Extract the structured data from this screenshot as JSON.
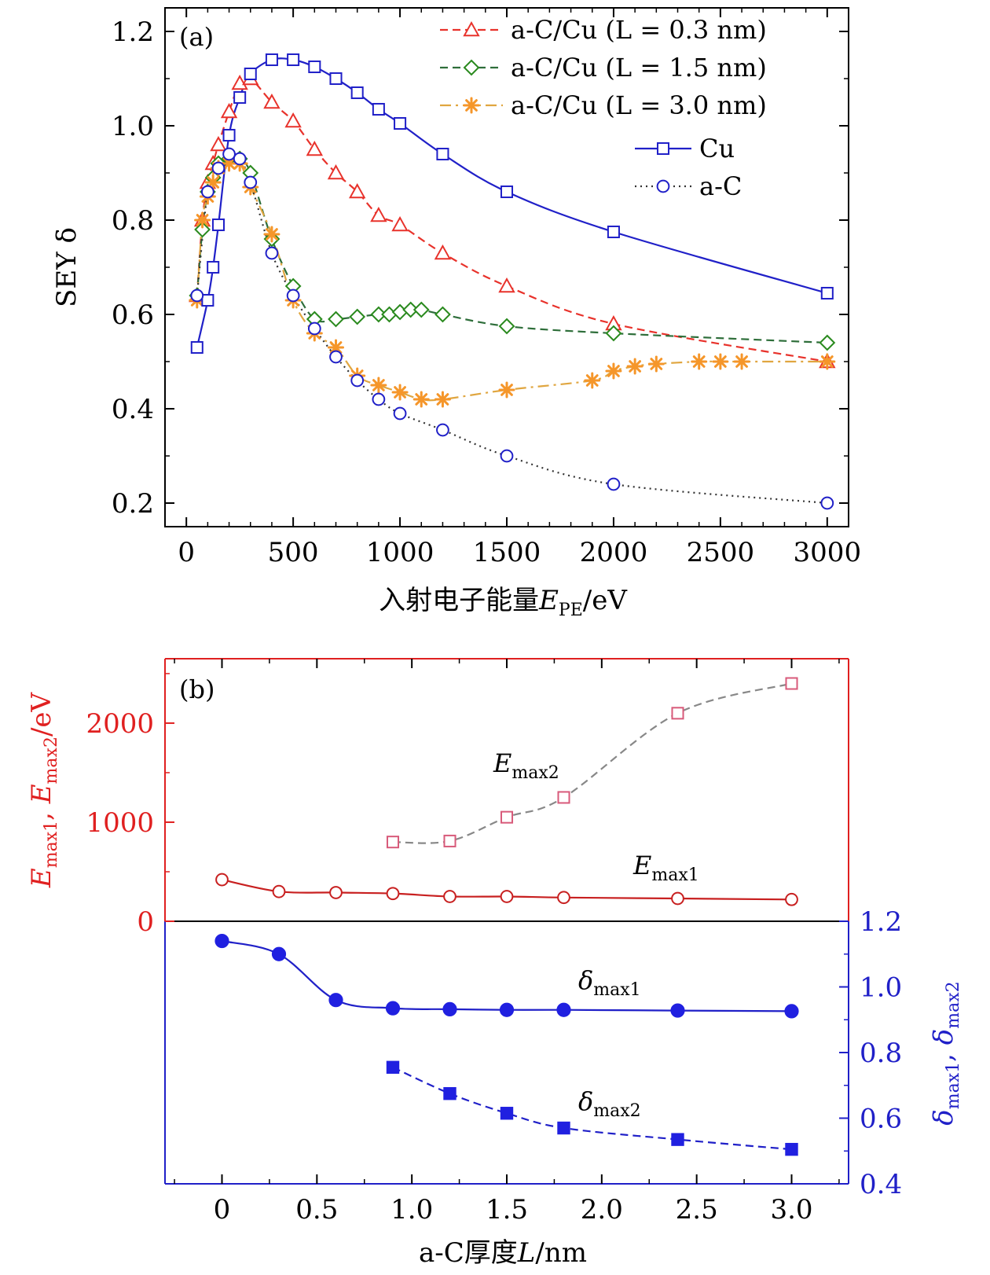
{
  "chart_data": [
    {
      "panel": "(a)",
      "type": "line",
      "xlabel": "入射电子能量",
      "xlabel_symbol": "E",
      "xlabel_sub": "PE",
      "xlabel_unit": "/eV",
      "ylabel": "SEY δ",
      "xlim": [
        -100,
        3100
      ],
      "ylim": [
        0.15,
        1.25
      ],
      "xticks": [
        "0",
        "500",
        "1000",
        "1500",
        "2000",
        "2500",
        "3000"
      ],
      "yticks": [
        "0.2",
        "0.4",
        "0.6",
        "0.8",
        "1.0",
        "1.2"
      ],
      "legend_position": "top-right",
      "series": [
        {
          "name": "a-C/Cu (L = 0.3 nm)",
          "marker": "triangle",
          "style": "dashed",
          "color": "#e8322b",
          "line_color": "#e8322b",
          "x": [
            50,
            75,
            100,
            125,
            150,
            200,
            250,
            300,
            400,
            500,
            600,
            700,
            800,
            900,
            1000,
            1200,
            1500,
            2000,
            3000
          ],
          "y": [
            0.64,
            0.8,
            0.88,
            0.92,
            0.96,
            1.03,
            1.09,
            1.1,
            1.05,
            1.01,
            0.95,
            0.9,
            0.86,
            0.81,
            0.79,
            0.73,
            0.66,
            0.58,
            0.5
          ]
        },
        {
          "name": "a-C/Cu (L = 1.5 nm)",
          "marker": "diamond",
          "style": "dashed",
          "color": "#2a8a1e",
          "line_color": "#2e6e3a",
          "x": [
            50,
            75,
            100,
            125,
            150,
            200,
            250,
            300,
            400,
            500,
            600,
            700,
            800,
            900,
            950,
            1000,
            1050,
            1100,
            1200,
            1500,
            2000,
            3000
          ],
          "y": [
            0.64,
            0.78,
            0.86,
            0.89,
            0.92,
            0.93,
            0.93,
            0.9,
            0.76,
            0.66,
            0.59,
            0.59,
            0.595,
            0.6,
            0.6,
            0.605,
            0.61,
            0.61,
            0.6,
            0.575,
            0.56,
            0.54
          ]
        },
        {
          "name": "a-C/Cu (L =  3.0 nm)",
          "marker": "star",
          "style": "dashdot",
          "color": "#f5962a",
          "line_color": "#e0a640",
          "x": [
            50,
            75,
            100,
            125,
            150,
            200,
            250,
            300,
            400,
            500,
            600,
            700,
            800,
            900,
            1000,
            1100,
            1200,
            1500,
            1900,
            2000,
            2100,
            2200,
            2400,
            2500,
            2600,
            3000
          ],
          "y": [
            0.63,
            0.8,
            0.85,
            0.88,
            0.91,
            0.92,
            0.92,
            0.87,
            0.77,
            0.63,
            0.56,
            0.53,
            0.47,
            0.45,
            0.435,
            0.42,
            0.42,
            0.44,
            0.46,
            0.48,
            0.49,
            0.495,
            0.5,
            0.5,
            0.5,
            0.5
          ]
        },
        {
          "name": "Cu",
          "marker": "square",
          "style": "solid",
          "color": "#2020c8",
          "line_color": "#2020c8",
          "x": [
            50,
            100,
            125,
            150,
            200,
            250,
            300,
            400,
            500,
            600,
            700,
            800,
            900,
            1000,
            1200,
            1500,
            2000,
            3000
          ],
          "y": [
            0.53,
            0.63,
            0.7,
            0.79,
            0.98,
            1.06,
            1.11,
            1.14,
            1.14,
            1.125,
            1.1,
            1.07,
            1.035,
            1.005,
            0.94,
            0.86,
            0.775,
            0.645
          ]
        },
        {
          "name": "a-C",
          "marker": "circle",
          "style": "dotted",
          "color": "#2020c8",
          "line_color": "#333333",
          "x": [
            50,
            100,
            150,
            200,
            250,
            300,
            400,
            500,
            600,
            700,
            800,
            900,
            1000,
            1200,
            1500,
            2000,
            3000
          ],
          "y": [
            0.64,
            0.86,
            0.91,
            0.94,
            0.93,
            0.88,
            0.73,
            0.64,
            0.57,
            0.51,
            0.46,
            0.42,
            0.39,
            0.355,
            0.3,
            0.24,
            0.2
          ]
        }
      ]
    },
    {
      "panel": "(b)",
      "type": "line",
      "xlabel": "a-C厚度",
      "xlabel_symbol": "L",
      "xlabel_unit": "/nm",
      "xlim": [
        -0.3,
        3.3
      ],
      "xticks": [
        "0",
        "0.5",
        "1.0",
        "1.5",
        "2.0",
        "2.5",
        "3.0"
      ],
      "top": {
        "ylabel": "E_max1, E_max2/eV",
        "ylabel_parts": {
          "e1_base": "E",
          "e1_sub": "max1",
          "sep": ", ",
          "e2_base": "E",
          "e2_sub": "max2",
          "unit": "/eV"
        },
        "ylim": [
          0,
          2650
        ],
        "yticks": [
          "0",
          "1000",
          "2000"
        ],
        "axis_color": "#e02020",
        "series": [
          {
            "name": "Emax2",
            "label_base": "E",
            "label_sub": "max2",
            "marker": "square-open",
            "style": "dashed",
            "color": "#d85a7a",
            "line_color": "#888888",
            "x": [
              0.9,
              1.2,
              1.5,
              1.8,
              2.4,
              3.0
            ],
            "y": [
              800,
              810,
              1050,
              1250,
              2100,
              2400
            ]
          },
          {
            "name": "Emax1",
            "label_base": "E",
            "label_sub": "max1",
            "marker": "circle-open",
            "style": "solid",
            "color": "#c82020",
            "line_color": "#c82020",
            "x": [
              0,
              0.3,
              0.6,
              0.9,
              1.2,
              1.5,
              1.8,
              2.4,
              3.0
            ],
            "y": [
              420,
              300,
              290,
              280,
              250,
              250,
              240,
              230,
              220
            ]
          }
        ]
      },
      "bottom": {
        "ylabel": "δmax1, δmax2",
        "ylabel_parts": {
          "d1_base": "δ",
          "d1_sub": "max1",
          "sep": ", ",
          "d2_base": "δ",
          "d2_sub": "max2"
        },
        "ylim": [
          0.4,
          1.2
        ],
        "yticks": [
          "0.4",
          "0.6",
          "0.8",
          "1.0",
          "1.2"
        ],
        "axis_color": "#2020c8",
        "series": [
          {
            "name": "δmax1",
            "label_base": "δ",
            "label_sub": "max1",
            "marker": "circle-filled",
            "style": "solid",
            "color": "#2020e0",
            "line_color": "#2020c8",
            "x": [
              0,
              0.3,
              0.6,
              0.9,
              1.2,
              1.5,
              1.8,
              2.4,
              3.0
            ],
            "y": [
              1.14,
              1.1,
              0.96,
              0.935,
              0.932,
              0.93,
              0.93,
              0.928,
              0.926
            ]
          },
          {
            "name": "δmax2",
            "label_base": "δ",
            "label_sub": "max2",
            "marker": "square-filled",
            "style": "dashed",
            "color": "#2020e0",
            "line_color": "#2020c8",
            "x": [
              0.9,
              1.2,
              1.5,
              1.8,
              2.4,
              3.0
            ],
            "y": [
              0.755,
              0.675,
              0.615,
              0.57,
              0.535,
              0.505
            ]
          }
        ]
      }
    }
  ]
}
